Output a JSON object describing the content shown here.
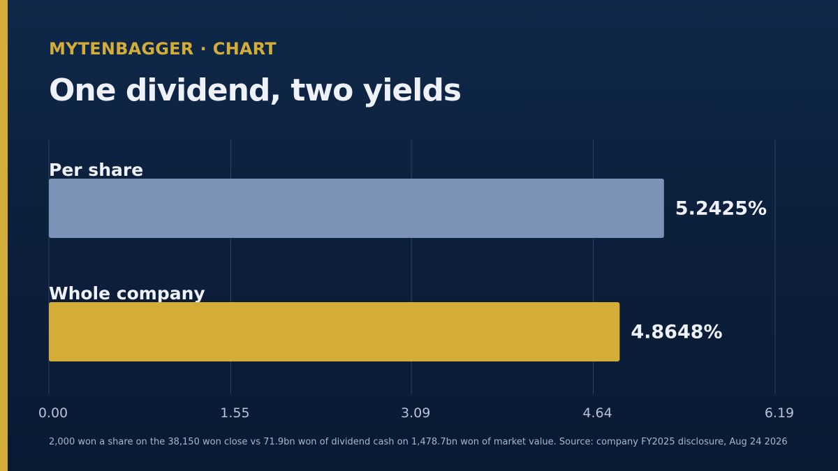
{
  "brand": "MYTENBAGGER",
  "section": "CHART",
  "separator": "·",
  "colors": {
    "background": "#0c1e3a",
    "accent": "#d3ad38",
    "bar_per_share": "#7b93b6",
    "bar_whole_company": "#d3ad38",
    "text": "#eef2f8",
    "tick_text": "#b7c3d6",
    "gridline": "#2b4266"
  },
  "chart_data": {
    "type": "bar",
    "orientation": "horizontal",
    "title": "One dividend, two yields",
    "categories": [
      "Per share",
      "Whole company"
    ],
    "values": [
      5.2425,
      4.8648
    ],
    "value_labels": [
      "5.2425%",
      "4.8648%"
    ],
    "xlim": [
      0,
      6.19
    ],
    "xticks": [
      0,
      1.55,
      3.09,
      4.64,
      6.19
    ],
    "xtick_labels": [
      "0.00",
      "1.55",
      "3.09",
      "4.64",
      "6.19"
    ],
    "grid": true,
    "legend": "none"
  },
  "footnote": "2,000 won a share on the 38,150 won close vs 71.9bn won of dividend cash on 1,478.7bn won of market value. Source: company FY2025 disclosure, Aug 24 2026"
}
